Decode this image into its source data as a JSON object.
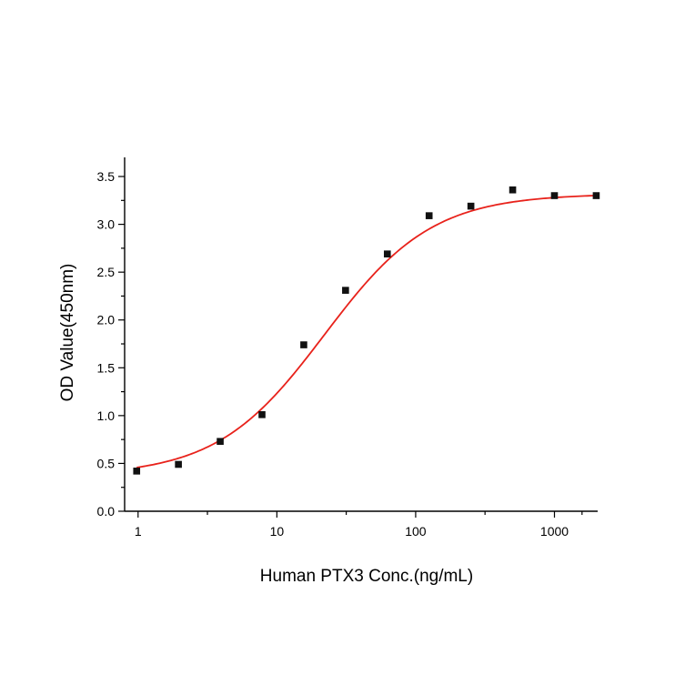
{
  "chart_data": {
    "type": "scatter",
    "title": "",
    "xlabel": "Human PTX3 Conc.(ng/mL)",
    "ylabel": "OD Value(450nm)",
    "xscale": "log",
    "xlim": [
      0.8,
      2048
    ],
    "ylim": [
      0,
      3.7
    ],
    "x_ticks": [
      1,
      10,
      100,
      1000
    ],
    "x_tick_labels": [
      "1",
      "10",
      "100",
      "1000"
    ],
    "y_ticks": [
      0.0,
      0.5,
      1.0,
      1.5,
      2.0,
      2.5,
      3.0,
      3.5
    ],
    "y_tick_labels": [
      "0.0",
      "0.5",
      "1.0",
      "1.5",
      "2.0",
      "2.5",
      "3.0",
      "3.5"
    ],
    "grid": false,
    "legend": "none",
    "series": [
      {
        "type": "scatter",
        "marker": "square",
        "color": "#111111",
        "x": [
          0.977,
          1.953,
          3.906,
          7.813,
          15.625,
          31.25,
          62.5,
          125,
          250,
          500,
          1000,
          2000
        ],
        "y": [
          0.42,
          0.49,
          0.73,
          1.01,
          1.74,
          2.31,
          2.69,
          3.09,
          3.19,
          3.36,
          3.3,
          3.3
        ]
      },
      {
        "type": "line",
        "fit": "4PL",
        "color": "#e8221b",
        "params": {
          "bottom": 0.37,
          "top": 3.32,
          "ec50": 22,
          "hill": 1.12
        },
        "x_range": [
          0.977,
          2000
        ]
      }
    ]
  }
}
